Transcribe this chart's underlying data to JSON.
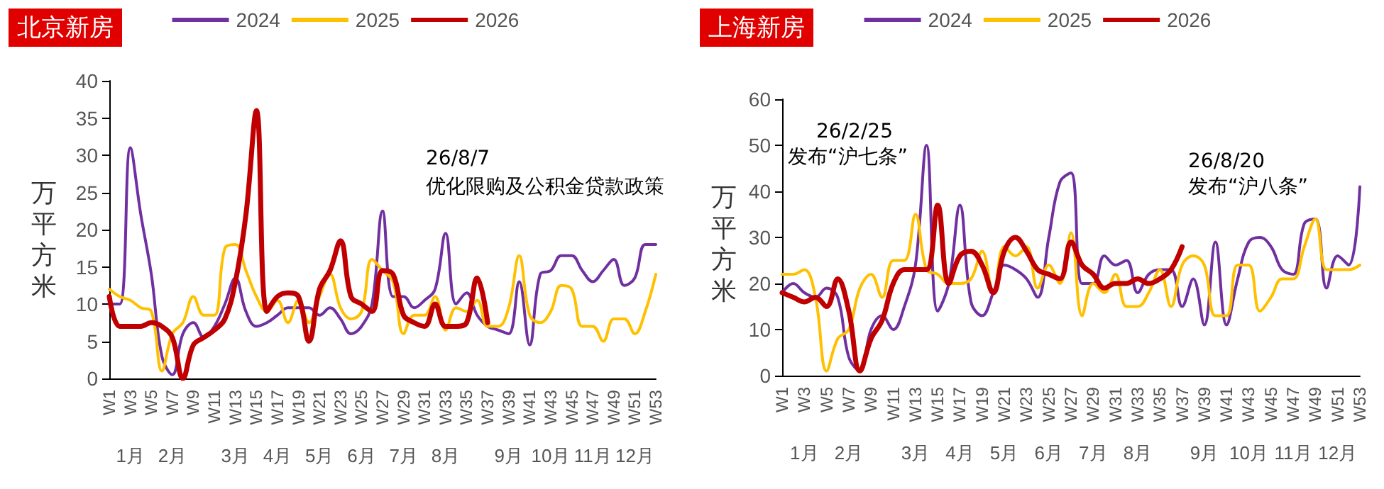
{
  "chart_data": [
    {
      "type": "line",
      "title": "北京新房",
      "ylabel": "万平方米",
      "legend": "top",
      "grid": false,
      "marker": "none",
      "line_style": "solid",
      "categories": [
        "W1",
        null,
        "W3",
        null,
        "W5",
        null,
        "W7",
        null,
        "W9",
        null,
        "W11",
        null,
        "W13",
        null,
        "W15",
        null,
        "W17",
        null,
        "W19",
        null,
        "W21",
        null,
        "W23",
        null,
        "W25",
        null,
        "W27",
        null,
        "W29",
        null,
        "W31",
        null,
        "W33",
        null,
        "W35",
        null,
        "W37",
        null,
        "W39",
        null,
        "W41",
        null,
        "W43",
        null,
        "W45",
        null,
        "W47",
        null,
        "W49",
        null,
        "W51",
        null,
        "W53"
      ],
      "ylim": [
        0,
        40
      ],
      "yticks": [
        0,
        5,
        10,
        15,
        20,
        25,
        30,
        35,
        40
      ],
      "series": [
        {
          "name": "2024",
          "color": "#7030a0",
          "values": [
            10,
            10,
            31,
            22,
            14,
            3,
            0.5,
            6,
            7.5,
            5.5,
            7,
            10,
            13.5,
            9,
            7,
            7.5,
            8.5,
            9.5,
            9.5,
            9.5,
            8.5,
            9.5,
            8,
            6,
            7,
            10,
            22.5,
            11,
            11,
            9.5,
            10.5,
            12,
            19.5,
            10,
            11.5,
            8.5,
            7,
            6.5,
            6,
            13,
            4.5,
            14,
            14.5,
            16.5,
            16.5,
            14.5,
            13,
            14.5,
            16,
            12.5,
            13.5,
            18,
            18
          ]
        },
        {
          "name": "2025",
          "color": "#ffc000",
          "values": [
            12,
            11,
            10.5,
            9.5,
            9,
            1,
            6,
            7.5,
            11,
            8.5,
            8.5,
            17.5,
            18,
            14.5,
            11,
            9,
            10.5,
            7.5,
            10.5,
            7.5,
            11,
            14,
            9.5,
            8,
            9,
            16,
            14.5,
            13,
            6,
            8.5,
            8.5,
            11,
            6.5,
            9.5,
            9,
            10.5,
            7,
            7,
            9.5,
            16.5,
            8.5,
            7.5,
            9,
            12.5,
            12,
            7,
            7,
            5,
            8,
            8,
            6,
            9,
            14
          ]
        },
        {
          "name": "2026",
          "color": "#c00000",
          "values": [
            11,
            7,
            7,
            7,
            7.5,
            7,
            5.5,
            0,
            4.5,
            5.5,
            6.5,
            8,
            13,
            22,
            36,
            9,
            11,
            11.5,
            11,
            5,
            12,
            14.5,
            18.5,
            11,
            10,
            9,
            14.5,
            14,
            8.5,
            7.5,
            7,
            10,
            7,
            7,
            7.5,
            13.5,
            7.5,
            null,
            null,
            null,
            null,
            null,
            null,
            null,
            null,
            null,
            null,
            null,
            null,
            null,
            null,
            null,
            null
          ]
        }
      ],
      "annotations": [
        "26/8/7",
        "优化限购及公积金贷款政策",
        "1月",
        "2月",
        "3月",
        "4月",
        "5月",
        "6月",
        "7月",
        "8月",
        "9月",
        "10月",
        "11月",
        "12月"
      ]
    },
    {
      "type": "line",
      "title": "上海新房",
      "ylabel": "万平方米",
      "legend": "top",
      "grid": false,
      "marker": "none",
      "line_style": "solid",
      "categories": [
        "W1",
        null,
        "W3",
        null,
        "W5",
        null,
        "W7",
        null,
        "W9",
        null,
        "W11",
        null,
        "W13",
        null,
        "W15",
        null,
        "W17",
        null,
        "W19",
        null,
        "W21",
        null,
        "W23",
        null,
        "W25",
        null,
        "W27",
        null,
        "W29",
        null,
        "W31",
        null,
        "W33",
        null,
        "W35",
        null,
        "W37",
        null,
        "W39",
        null,
        "W41",
        null,
        "W43",
        null,
        "W45",
        null,
        "W47",
        null,
        "W49",
        null,
        "W51",
        null,
        "W53"
      ],
      "ylim": [
        0,
        60
      ],
      "yticks": [
        0,
        10,
        20,
        30,
        40,
        50,
        60
      ],
      "series": [
        {
          "name": "2024",
          "color": "#7030a0",
          "values": [
            18,
            20,
            18,
            17,
            19,
            17,
            4,
            1,
            10,
            13,
            10,
            15,
            24,
            50,
            14,
            20,
            37,
            16,
            13,
            18,
            24,
            23,
            21,
            17,
            30,
            42,
            44,
            20,
            20,
            26,
            24,
            25,
            18,
            22,
            23,
            23,
            15,
            21,
            11,
            29,
            11,
            21,
            29,
            30,
            28,
            23,
            22,
            33,
            34,
            19,
            26,
            24,
            41
          ]
        },
        {
          "name": "2025",
          "color": "#ffc000",
          "values": [
            22,
            22,
            23,
            17,
            1,
            8,
            10,
            19,
            22,
            17,
            25,
            25,
            35,
            23,
            22,
            20,
            20,
            21,
            27,
            18,
            28,
            26,
            28,
            19,
            24,
            20,
            31,
            13,
            20,
            18,
            22,
            15,
            15,
            18,
            23,
            15,
            24,
            26,
            24,
            13,
            13,
            24,
            24,
            14,
            17,
            21,
            21,
            28,
            34,
            23,
            23,
            23,
            24
          ]
        },
        {
          "name": "2026",
          "color": "#c00000",
          "values": [
            18,
            17,
            16,
            17,
            15,
            21,
            14,
            1,
            8,
            12,
            20,
            23,
            23,
            23,
            37,
            20,
            26,
            27,
            24,
            18,
            27,
            30,
            27,
            23,
            22,
            21,
            29,
            24,
            22,
            19,
            20,
            20,
            21,
            20,
            21,
            23,
            28,
            null,
            null,
            null,
            null,
            null,
            null,
            null,
            null,
            null,
            null,
            null,
            null,
            null,
            null,
            null,
            null
          ]
        }
      ],
      "annotations": [
        "26/2/25",
        "发布“沪七条”",
        "26/8/20",
        "发布“沪八条”",
        "1月",
        "2月",
        "3月",
        "4月",
        "5月",
        "6月",
        "7月",
        "8月",
        "9月",
        "10月",
        "11月",
        "12月"
      ]
    }
  ]
}
